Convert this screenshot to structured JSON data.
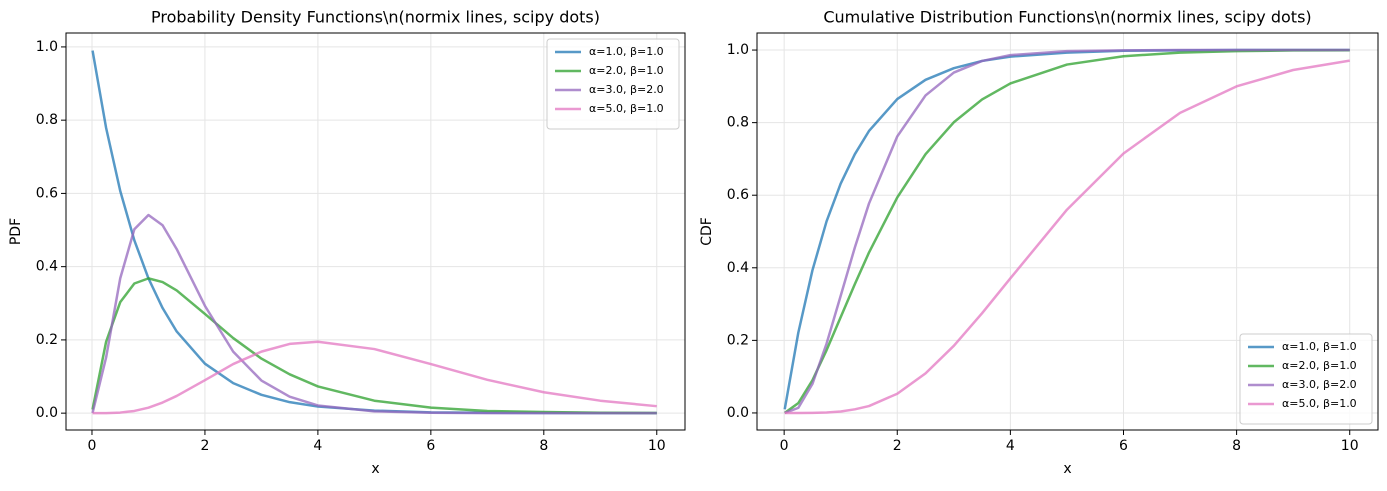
{
  "chart_data": [
    {
      "type": "line",
      "title": "Probability Density Functions\\n(normix lines, scipy dots)",
      "x_label": "x",
      "y_label": "PDF",
      "x": [
        0.01,
        0.25,
        0.5,
        0.75,
        1,
        1.25,
        1.5,
        2,
        2.5,
        3,
        3.5,
        4,
        5,
        6,
        7,
        8,
        9,
        10
      ],
      "series": [
        {
          "name": "α=1.0, β=1.0",
          "color": "#1f77b4",
          "values": [
            0.99,
            0.779,
            0.607,
            0.472,
            0.368,
            0.287,
            0.223,
            0.135,
            0.082,
            0.05,
            0.03,
            0.018,
            0.007,
            0.002,
            0.001,
            0.0003,
            0.0001,
            5e-05
          ]
        },
        {
          "name": "α=2.0, β=1.0",
          "color": "#2ca02c",
          "values": [
            0.0099,
            0.195,
            0.303,
            0.354,
            0.368,
            0.358,
            0.335,
            0.271,
            0.205,
            0.149,
            0.106,
            0.073,
            0.034,
            0.015,
            0.006,
            0.003,
            0.001,
            0.0005
          ]
        },
        {
          "name": "α=3.0, β=2.0",
          "color": "#9467bd",
          "values": [
            0.0004,
            0.152,
            0.368,
            0.502,
            0.541,
            0.513,
            0.448,
            0.293,
            0.168,
            0.089,
            0.045,
            0.021,
            0.005,
            0.001,
            0.0002,
            0,
            0,
            0
          ]
        },
        {
          "name": "α=5.0, β=1.0",
          "color": "#e377c2",
          "values": [
            0,
            0.0001,
            0.0016,
            0.006,
            0.015,
            0.029,
            0.047,
            0.09,
            0.134,
            0.168,
            0.189,
            0.195,
            0.175,
            0.134,
            0.091,
            0.057,
            0.034,
            0.019
          ]
        }
      ],
      "xlim": [
        -0.46,
        10.5
      ],
      "ylim": [
        -0.046,
        1.038
      ],
      "xticks": [
        0,
        2,
        4,
        6,
        8,
        10
      ],
      "yticks": [
        {
          "value": 0,
          "label": "0.0"
        },
        {
          "value": 0.2,
          "label": "0.2"
        },
        {
          "value": 0.4,
          "label": "0.4"
        },
        {
          "value": 0.6,
          "label": "0.6"
        },
        {
          "value": 0.8,
          "label": "0.8"
        },
        {
          "value": 1,
          "label": "1.0"
        }
      ],
      "grid": true,
      "legend": "upper right"
    },
    {
      "type": "line",
      "title": "Cumulative Distribution Functions\\n(normix lines, scipy dots)",
      "x_label": "x",
      "y_label": "CDF",
      "x": [
        0.01,
        0.25,
        0.5,
        0.75,
        1,
        1.25,
        1.5,
        2,
        2.5,
        3,
        3.5,
        4,
        5,
        6,
        7,
        8,
        9,
        10
      ],
      "series": [
        {
          "name": "α=1.0, β=1.0",
          "color": "#1f77b4",
          "values": [
            0.01,
            0.221,
            0.393,
            0.528,
            0.632,
            0.713,
            0.777,
            0.865,
            0.918,
            0.95,
            0.97,
            0.982,
            0.993,
            0.998,
            0.999,
            1,
            1,
            1
          ]
        },
        {
          "name": "α=2.0, β=1.0",
          "color": "#2ca02c",
          "values": [
            5e-05,
            0.027,
            0.09,
            0.173,
            0.264,
            0.355,
            0.442,
            0.594,
            0.713,
            0.801,
            0.864,
            0.908,
            0.96,
            0.983,
            0.993,
            0.997,
            0.999,
            0.9995
          ]
        },
        {
          "name": "α=3.0, β=2.0",
          "color": "#9467bd",
          "values": [
            0,
            0.014,
            0.08,
            0.191,
            0.323,
            0.456,
            0.577,
            0.762,
            0.875,
            0.938,
            0.97,
            0.986,
            0.997,
            0.999,
            1,
            1,
            1,
            1
          ]
        },
        {
          "name": "α=5.0, β=1.0",
          "color": "#e377c2",
          "values": [
            0,
            0,
            0.0002,
            0.0012,
            0.004,
            0.01,
            0.019,
            0.053,
            0.109,
            0.185,
            0.275,
            0.371,
            0.56,
            0.715,
            0.827,
            0.9,
            0.945,
            0.971
          ]
        }
      ],
      "xlim": [
        -0.48,
        10.5
      ],
      "ylim": [
        -0.047,
        1.047
      ],
      "xticks": [
        0,
        2,
        4,
        6,
        8,
        10
      ],
      "yticks": [
        {
          "value": 0,
          "label": "0.0"
        },
        {
          "value": 0.2,
          "label": "0.2"
        },
        {
          "value": 0.4,
          "label": "0.4"
        },
        {
          "value": 0.6,
          "label": "0.6"
        },
        {
          "value": 0.8,
          "label": "0.8"
        },
        {
          "value": 1,
          "label": "1.0"
        }
      ],
      "grid": true,
      "legend": "lower right"
    }
  ]
}
